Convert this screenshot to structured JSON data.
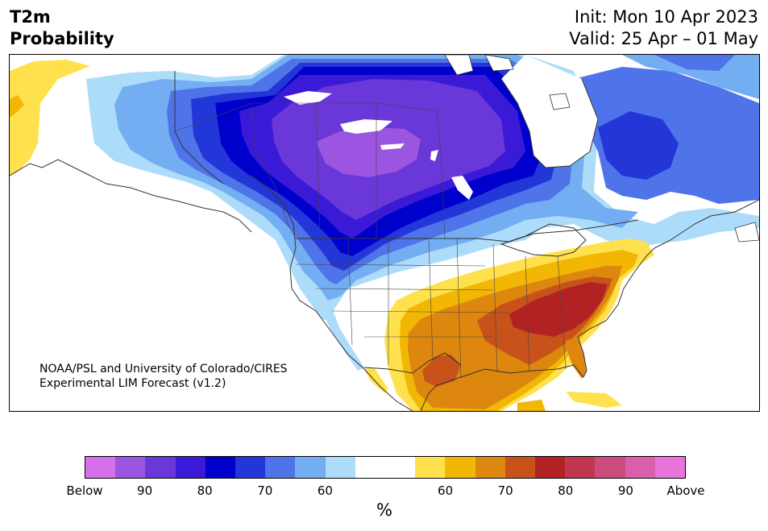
{
  "header": {
    "title_line1": "T2m",
    "title_line2": "Probability",
    "init_text": "Init: Mon 10 Apr 2023",
    "valid_text": "Valid: 25 Apr – 01 May"
  },
  "credit": {
    "line1": "NOAA/PSL and University of Colorado/CIRES",
    "line2": "Experimental LIM Forecast (v1.2)"
  },
  "colorbar": {
    "unit_label": "%",
    "segment_colors": [
      "#d670ea",
      "#9b55e0",
      "#6a37d8",
      "#3a1ad6",
      "#0000cc",
      "#2336d8",
      "#4f73e8",
      "#74aef2",
      "#addcfb",
      "#ffffff",
      "#ffffff",
      "#ffe14d",
      "#f2b705",
      "#dd870f",
      "#c7531a",
      "#b22222",
      "#c0384f",
      "#cc4b7d",
      "#da5fac",
      "#e874dc"
    ],
    "tick_labels": [
      "Below",
      "90",
      "80",
      "70",
      "60",
      "60",
      "70",
      "80",
      "90",
      "Above"
    ]
  },
  "map": {
    "colors": {
      "below_90": "#9b55e0",
      "below_80": "#6a37d8",
      "below_75": "#3a1ad6",
      "below_70": "#0000cc",
      "below_65": "#2336d8",
      "below_60": "#4f73e8",
      "below_55": "#74aef2",
      "below_50": "#addcfb",
      "above_55": "#ffe14d",
      "above_60": "#f2b705",
      "above_65": "#dd870f",
      "above_70": "#c7531a",
      "above_75": "#b22222",
      "coast": "#333333"
    }
  }
}
